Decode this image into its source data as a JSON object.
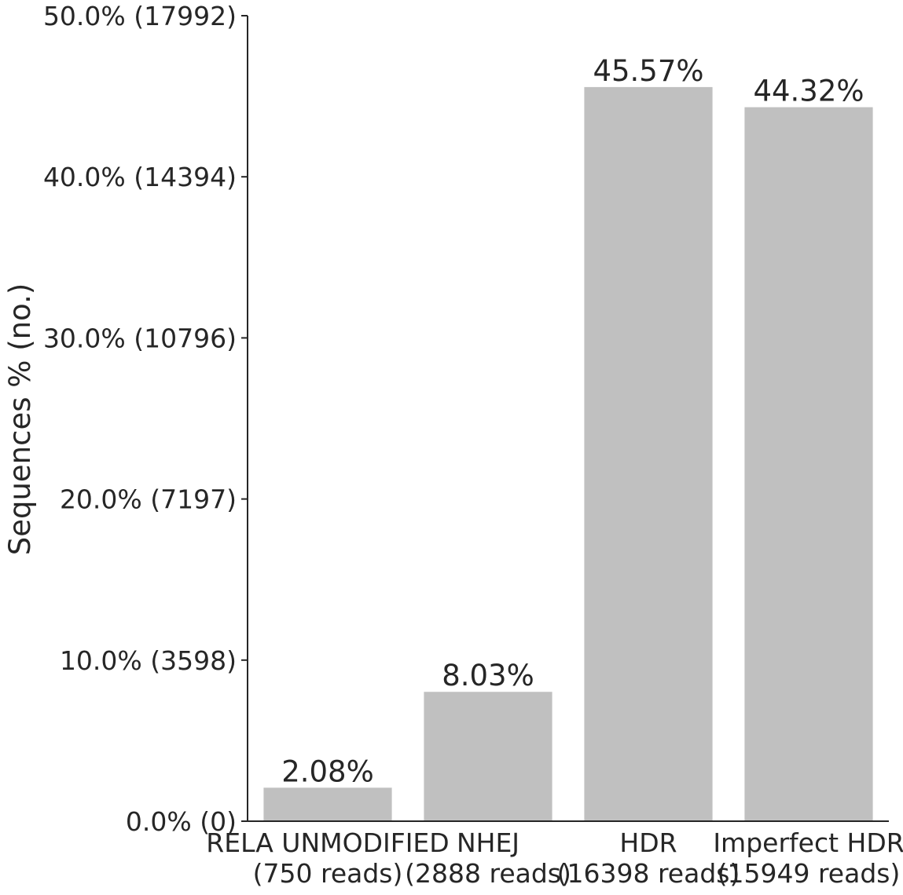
{
  "chart_data": {
    "type": "bar",
    "title": "",
    "xlabel": "",
    "ylabel": "Sequences % (no.)",
    "ylim": [
      0,
      50
    ],
    "grid": false,
    "legend": "none",
    "bar_color": "#c0c0c0",
    "text_color": "#262626",
    "categories": [
      [
        "RELA UNMODIFIED",
        "(750 reads)"
      ],
      [
        "NHEJ",
        "(2888 reads)"
      ],
      [
        "HDR",
        "(16398 reads)"
      ],
      [
        "Imperfect HDR",
        "(15949 reads)"
      ]
    ],
    "values": [
      2.08,
      8.03,
      45.57,
      44.32
    ],
    "value_labels": [
      "2.08%",
      "8.03%",
      "45.57%",
      "44.32%"
    ],
    "yticks": [
      0,
      10,
      20,
      30,
      40,
      50
    ],
    "ytick_labels": [
      "0.0% (0)",
      "10.0% (3598)",
      "20.0% (7197)",
      "30.0% (10796)",
      "40.0% (14394)",
      "50.0% (17992)"
    ]
  }
}
